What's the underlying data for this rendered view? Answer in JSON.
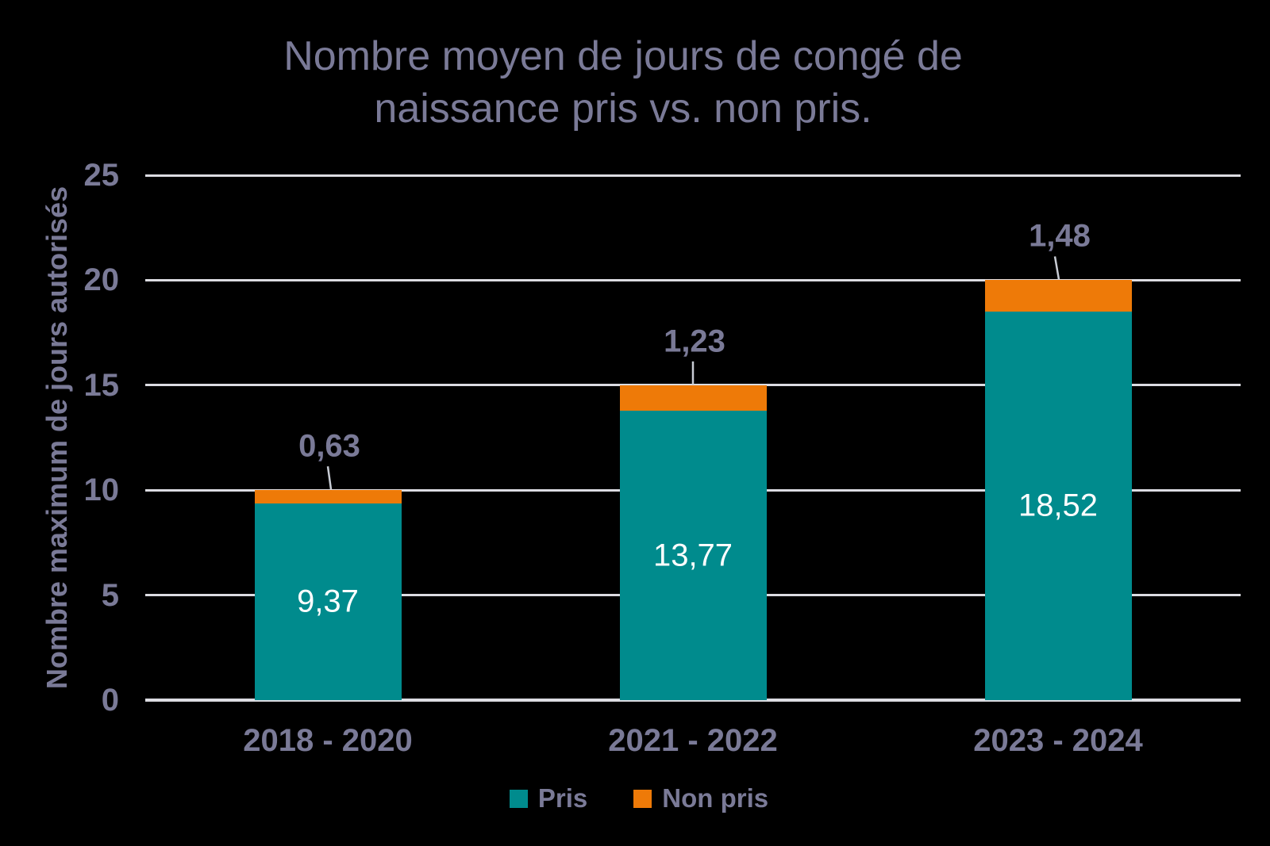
{
  "title": {
    "line1": "Nombre moyen de jours de congé de",
    "line2": "naissance pris vs. non pris."
  },
  "y_axis": {
    "label": "Nombre maximum de jours autorisés",
    "ticks": [
      "0",
      "5",
      "10",
      "15",
      "20",
      "25"
    ],
    "tick_values": [
      0,
      5,
      10,
      15,
      20,
      25
    ]
  },
  "chart_data": {
    "type": "bar",
    "stacked": true,
    "title": "Nombre moyen de jours de congé de naissance pris vs. non pris.",
    "ylabel": "Nombre maximum de jours autorisés",
    "ylim": [
      0,
      25
    ],
    "grid": true,
    "legend_position": "bottom",
    "categories": [
      "2018 - 2020",
      "2021 - 2022",
      "2023 - 2024"
    ],
    "series": [
      {
        "name": "Pris",
        "color": "#008b8d",
        "values": [
          9.37,
          13.77,
          18.52
        ],
        "labels": [
          "9,37",
          "13,77",
          "18,52"
        ]
      },
      {
        "name": "Non pris",
        "color": "#ee7a08",
        "values": [
          0.63,
          1.23,
          1.48
        ],
        "labels": [
          "0,63",
          "1,23",
          "1,48"
        ]
      }
    ],
    "totals": [
      10.0,
      15.0,
      20.0
    ]
  },
  "legend": {
    "items": [
      {
        "label": "Pris",
        "color": "#008b8d"
      },
      {
        "label": "Non pris",
        "color": "#ee7a08"
      }
    ]
  },
  "colors": {
    "background": "#000000",
    "text": "#7a7a97",
    "gridline": "#dcdce2",
    "bar_value_text": "#ffffff",
    "leader_line": "#c8ccd4",
    "pris": "#008b8d",
    "non_pris": "#ee7a08"
  }
}
